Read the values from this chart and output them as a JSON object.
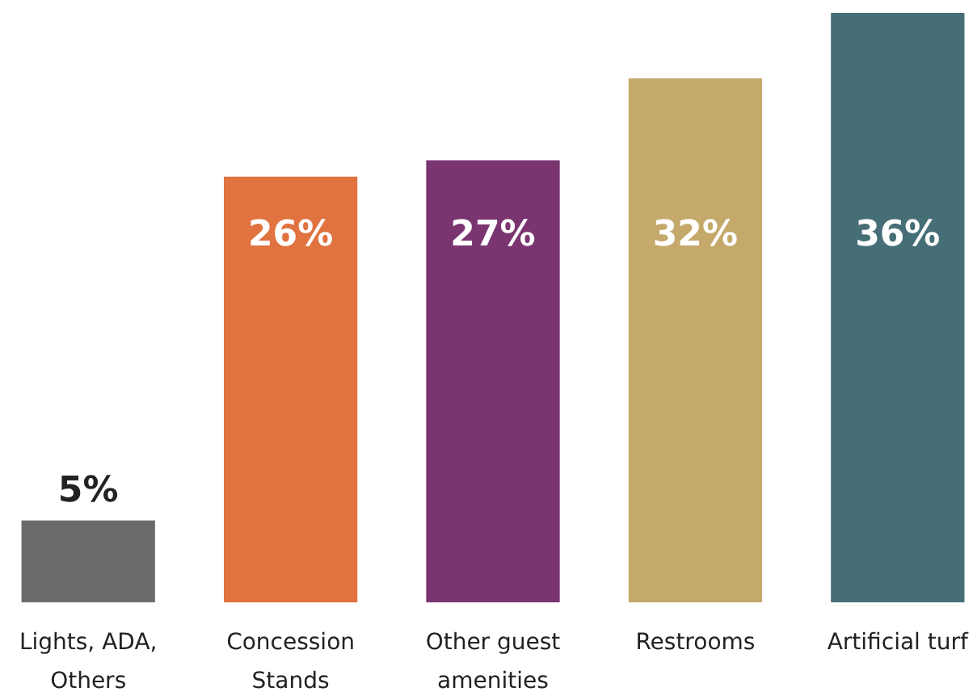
{
  "chart_data": {
    "type": "bar",
    "categories": [
      "Lights, ADA, Others",
      "Concession Stands",
      "Other guest amenities",
      "Restrooms",
      "Artificial turf"
    ],
    "values": [
      5,
      26,
      27,
      32,
      36
    ],
    "value_labels": [
      "5%",
      "26%",
      "27%",
      "32%",
      "36%"
    ],
    "colors": [
      "#6b6b6b",
      "#e07340",
      "#7a3570",
      "#c4a96b",
      "#466e76"
    ]
  }
}
